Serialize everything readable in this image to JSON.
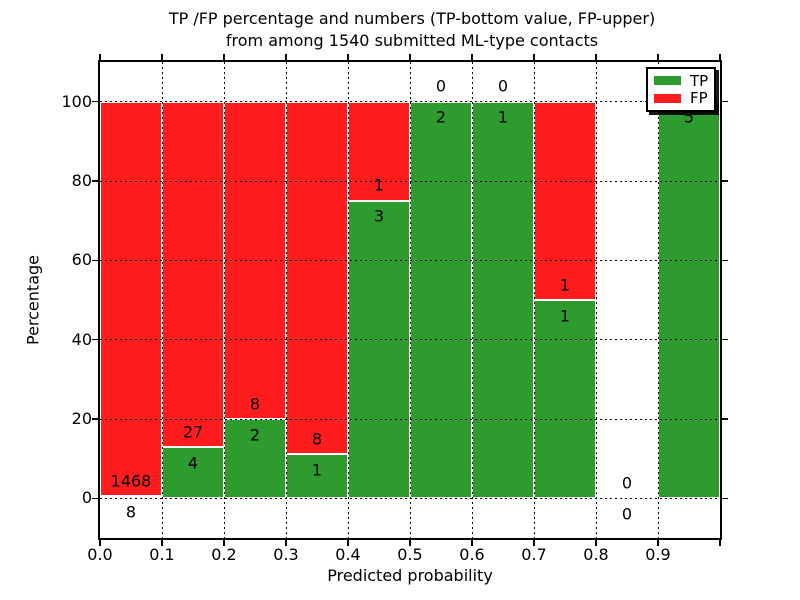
{
  "title": {
    "line1": "TP /FP percentage and numbers (TP-bottom value, FP-upper)",
    "line2": "from among 1540 submitted ML-type contacts"
  },
  "chart_data": {
    "type": "bar",
    "stacked": true,
    "normalization": "each bin scaled so TP+FP = 100%",
    "title": "TP /FP percentage and numbers (TP-bottom value, FP-upper) from among 1540 submitted ML-type contacts",
    "xlabel": "Predicted probability",
    "ylabel": "Percentage",
    "xlim": [
      0.0,
      1.0
    ],
    "ylim": [
      -10,
      110
    ],
    "grid": "dotted black, drawn over bars",
    "legend_position": "upper right",
    "x_tick_labels": [
      "0.0",
      "0.1",
      "0.2",
      "0.3",
      "0.4",
      "0.5",
      "0.6",
      "0.7",
      "0.8",
      "0.9"
    ],
    "y_tick_values": [
      0,
      20,
      40,
      60,
      80,
      100
    ],
    "total_contacts": 1540,
    "series": [
      {
        "name": "TP",
        "color": "#2e9b2e"
      },
      {
        "name": "FP",
        "color": "#fe1c1c"
      }
    ],
    "bins": [
      {
        "range": [
          0.0,
          0.1
        ],
        "tp": 8,
        "fp": 1468
      },
      {
        "range": [
          0.1,
          0.2
        ],
        "tp": 4,
        "fp": 27
      },
      {
        "range": [
          0.2,
          0.3
        ],
        "tp": 2,
        "fp": 8
      },
      {
        "range": [
          0.3,
          0.4
        ],
        "tp": 1,
        "fp": 8
      },
      {
        "range": [
          0.4,
          0.5
        ],
        "tp": 3,
        "fp": 1
      },
      {
        "range": [
          0.5,
          0.6
        ],
        "tp": 2,
        "fp": 0
      },
      {
        "range": [
          0.6,
          0.7
        ],
        "tp": 1,
        "fp": 0
      },
      {
        "range": [
          0.7,
          0.8
        ],
        "tp": 1,
        "fp": 1
      },
      {
        "range": [
          0.8,
          0.9
        ],
        "tp": 0,
        "fp": 0
      },
      {
        "range": [
          0.9,
          1.0
        ],
        "tp": 5,
        "fp": 0
      }
    ]
  },
  "colors": {
    "tp_green": "#2e9b2e",
    "fp_red": "#fe1c1c",
    "axes": "#000000",
    "background": "#ffffff"
  }
}
